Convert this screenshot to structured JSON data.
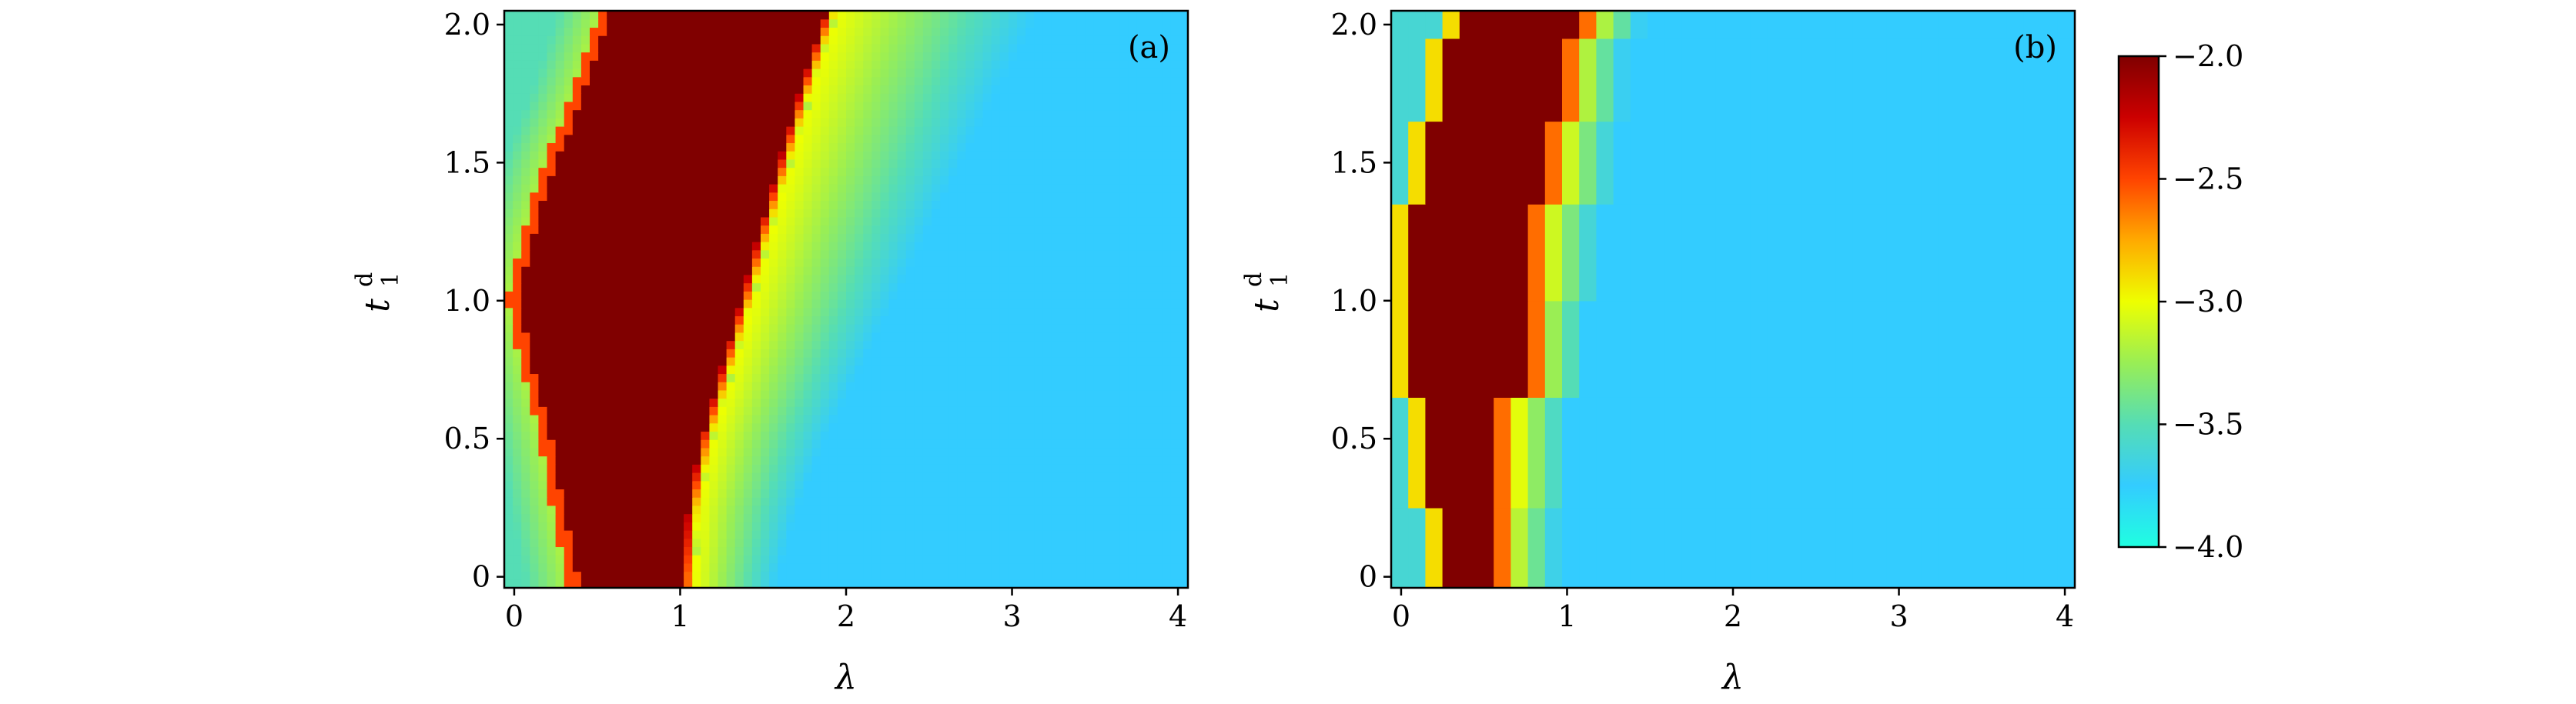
{
  "chart_data": [
    {
      "type": "heatmap",
      "panel_label": "(a)",
      "xlabel": "λ",
      "ylabel_main": "t",
      "ylabel_sub": "1",
      "ylabel_sup": "d",
      "xlim": [
        -0.06,
        4.06
      ],
      "ylim": [
        -0.04,
        2.05
      ],
      "x_ticks": [
        "0",
        "1",
        "2",
        "3",
        "4"
      ],
      "y_ticks": [
        "0",
        "0.5",
        "1.0",
        "1.5",
        "2.0"
      ],
      "nx": 80,
      "ny": 70,
      "high_region_boundary": {
        "t": [
          0.0,
          0.25,
          0.5,
          0.75,
          1.0,
          1.25,
          1.5,
          1.75,
          2.05
        ],
        "lambda_left": [
          0.38,
          0.3,
          0.22,
          0.12,
          0.02,
          0.12,
          0.25,
          0.42,
          0.58
        ],
        "lambda_right": [
          1.02,
          1.05,
          1.13,
          1.25,
          1.37,
          1.48,
          1.6,
          1.72,
          1.88
        ]
      },
      "transition_width": 0.07,
      "diffuse_width": 0.5,
      "note_rows": "variable"
    },
    {
      "type": "heatmap",
      "panel_label": "(b)",
      "xlabel": "λ",
      "ylabel_main": "t",
      "ylabel_sub": "1",
      "ylabel_sup": "d",
      "xlim": [
        -0.06,
        4.06
      ],
      "ylim": [
        -0.04,
        2.05
      ],
      "x_ticks": [
        "0",
        "1",
        "2",
        "3",
        "4"
      ],
      "y_ticks": [
        "0",
        "0.5",
        "1.0",
        "1.5",
        "2.0"
      ],
      "steps": [
        {
          "t0": -0.04,
          "t1": 0.25,
          "left": 0.25,
          "right": 0.55
        },
        {
          "t0": 0.25,
          "t1": 0.65,
          "left": 0.15,
          "right": 0.6
        },
        {
          "t0": 0.65,
          "t1": 1.0,
          "left": 0.05,
          "right": 0.72
        },
        {
          "t0": 1.0,
          "t1": 1.35,
          "left": 0.05,
          "right": 0.78
        },
        {
          "t0": 1.35,
          "t1": 1.65,
          "left": 0.15,
          "right": 0.88
        },
        {
          "t0": 1.65,
          "t1": 1.95,
          "left": 0.2,
          "right": 0.95
        },
        {
          "t0": 1.95,
          "t1": 2.05,
          "left": 0.35,
          "right": 1.05
        }
      ],
      "diffuse_width": 0.3
    }
  ],
  "colorbar": {
    "vmin": -4.0,
    "vmax": -2.0,
    "ticks": [
      "−4.0",
      "−3.5",
      "−3.0",
      "−2.5",
      "−2.0"
    ],
    "tick_values": [
      -4.0,
      -3.5,
      -3.0,
      -2.5,
      -2.0
    ],
    "colors": [
      "#20ffe0",
      "#33ccff",
      "#55ddb5",
      "#99ee55",
      "#eeff00",
      "#ffaa00",
      "#ff4400",
      "#cc0000",
      "#800000"
    ]
  }
}
